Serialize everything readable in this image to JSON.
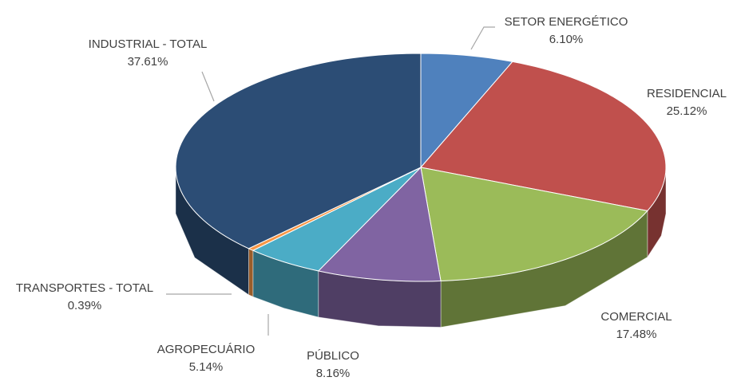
{
  "chart_data": {
    "type": "pie",
    "categories": [
      "SETOR ENERGÉTICO",
      "RESIDENCIAL",
      "COMERCIAL",
      "PÚBLICO",
      "AGROPECUÁRIO",
      "TRANSPORTES - TOTAL",
      "INDUSTRIAL - TOTAL"
    ],
    "values": [
      6.1,
      25.12,
      17.48,
      8.16,
      5.14,
      0.39,
      37.61
    ],
    "value_labels": [
      "6.10%",
      "25.12%",
      "17.48%",
      "8.16%",
      "5.14%",
      "0.39%",
      "37.61%"
    ],
    "colors": [
      "#4f81bd",
      "#c0504d",
      "#9bbb59",
      "#8064a2",
      "#4bacc6",
      "#f79646",
      "#2c4d75"
    ]
  }
}
